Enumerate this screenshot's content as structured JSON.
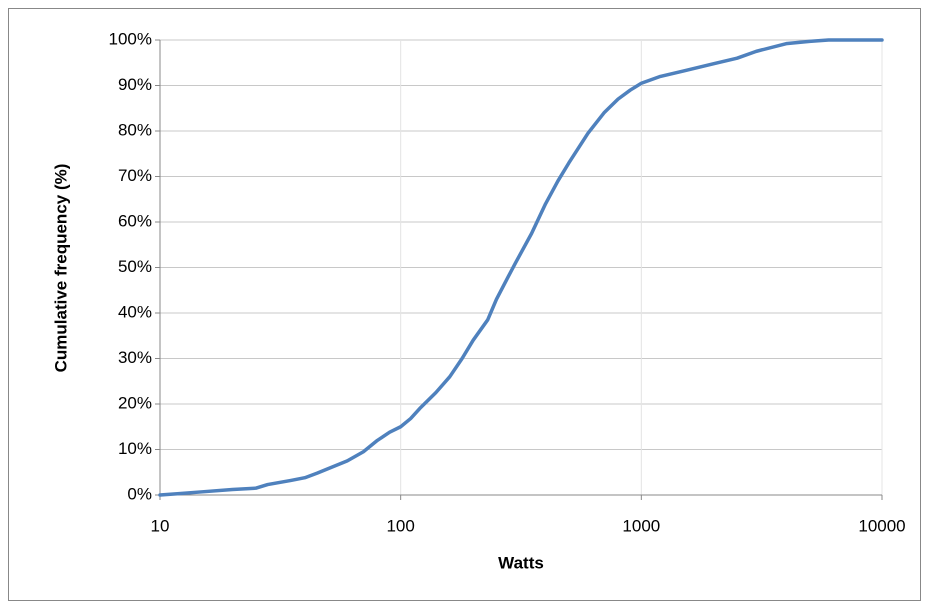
{
  "chart_data": {
    "type": "line",
    "x_label": "Watts",
    "y_label": "Cumulative frequency (%)",
    "x": [
      10,
      12,
      15,
      20,
      25,
      28,
      35,
      40,
      45,
      50,
      60,
      70,
      80,
      90,
      100,
      110,
      120,
      140,
      160,
      180,
      200,
      230,
      250,
      280,
      300,
      350,
      400,
      450,
      500,
      600,
      700,
      800,
      900,
      1000,
      1200,
      1500,
      2000,
      2500,
      3000,
      4000,
      5000,
      6000,
      10000
    ],
    "values": [
      0,
      0.3,
      0.7,
      1.2,
      1.5,
      2.3,
      3.2,
      3.8,
      4.8,
      5.8,
      7.5,
      9.5,
      12,
      13.8,
      15,
      16.8,
      19,
      22.5,
      26,
      30,
      34,
      38.5,
      43,
      48,
      51,
      57.5,
      64,
      69,
      73,
      79.5,
      84,
      87,
      89,
      90.5,
      92,
      93.2,
      94.8,
      96,
      97.5,
      99.2,
      99.7,
      100,
      100
    ],
    "color": "#4f81bd",
    "xscale": "log",
    "xlim": [
      10,
      10000
    ],
    "xticks": [
      10,
      100,
      1000,
      10000
    ],
    "ylim": [
      0,
      100
    ],
    "yticks": [
      {
        "value": 0,
        "label": "0%"
      },
      {
        "value": 10,
        "label": "10%"
      },
      {
        "value": 20,
        "label": "20%"
      },
      {
        "value": 30,
        "label": "30%"
      },
      {
        "value": 40,
        "label": "40%"
      },
      {
        "value": 50,
        "label": "50%"
      },
      {
        "value": 60,
        "label": "60%"
      },
      {
        "value": 70,
        "label": "70%"
      },
      {
        "value": 80,
        "label": "80%"
      },
      {
        "value": 90,
        "label": "90%"
      },
      {
        "value": 100,
        "label": "100%"
      }
    ],
    "grid": true
  }
}
